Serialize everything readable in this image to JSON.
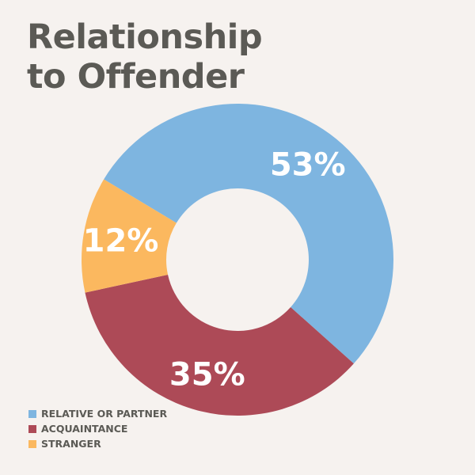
{
  "chart_data": {
    "type": "pie",
    "title_lines": [
      "Relationship",
      "to Offender"
    ],
    "categories": [
      "RELATIVE OR PARTNER",
      "ACQUAINTANCE",
      "STRANGER"
    ],
    "values": [
      53,
      35,
      12
    ],
    "labels": [
      "53%",
      "35%",
      "12%"
    ],
    "colors": [
      "#7eb5e0",
      "#ad4a57",
      "#fbb85f"
    ],
    "donut": true,
    "legend_position": "bottom-left"
  }
}
